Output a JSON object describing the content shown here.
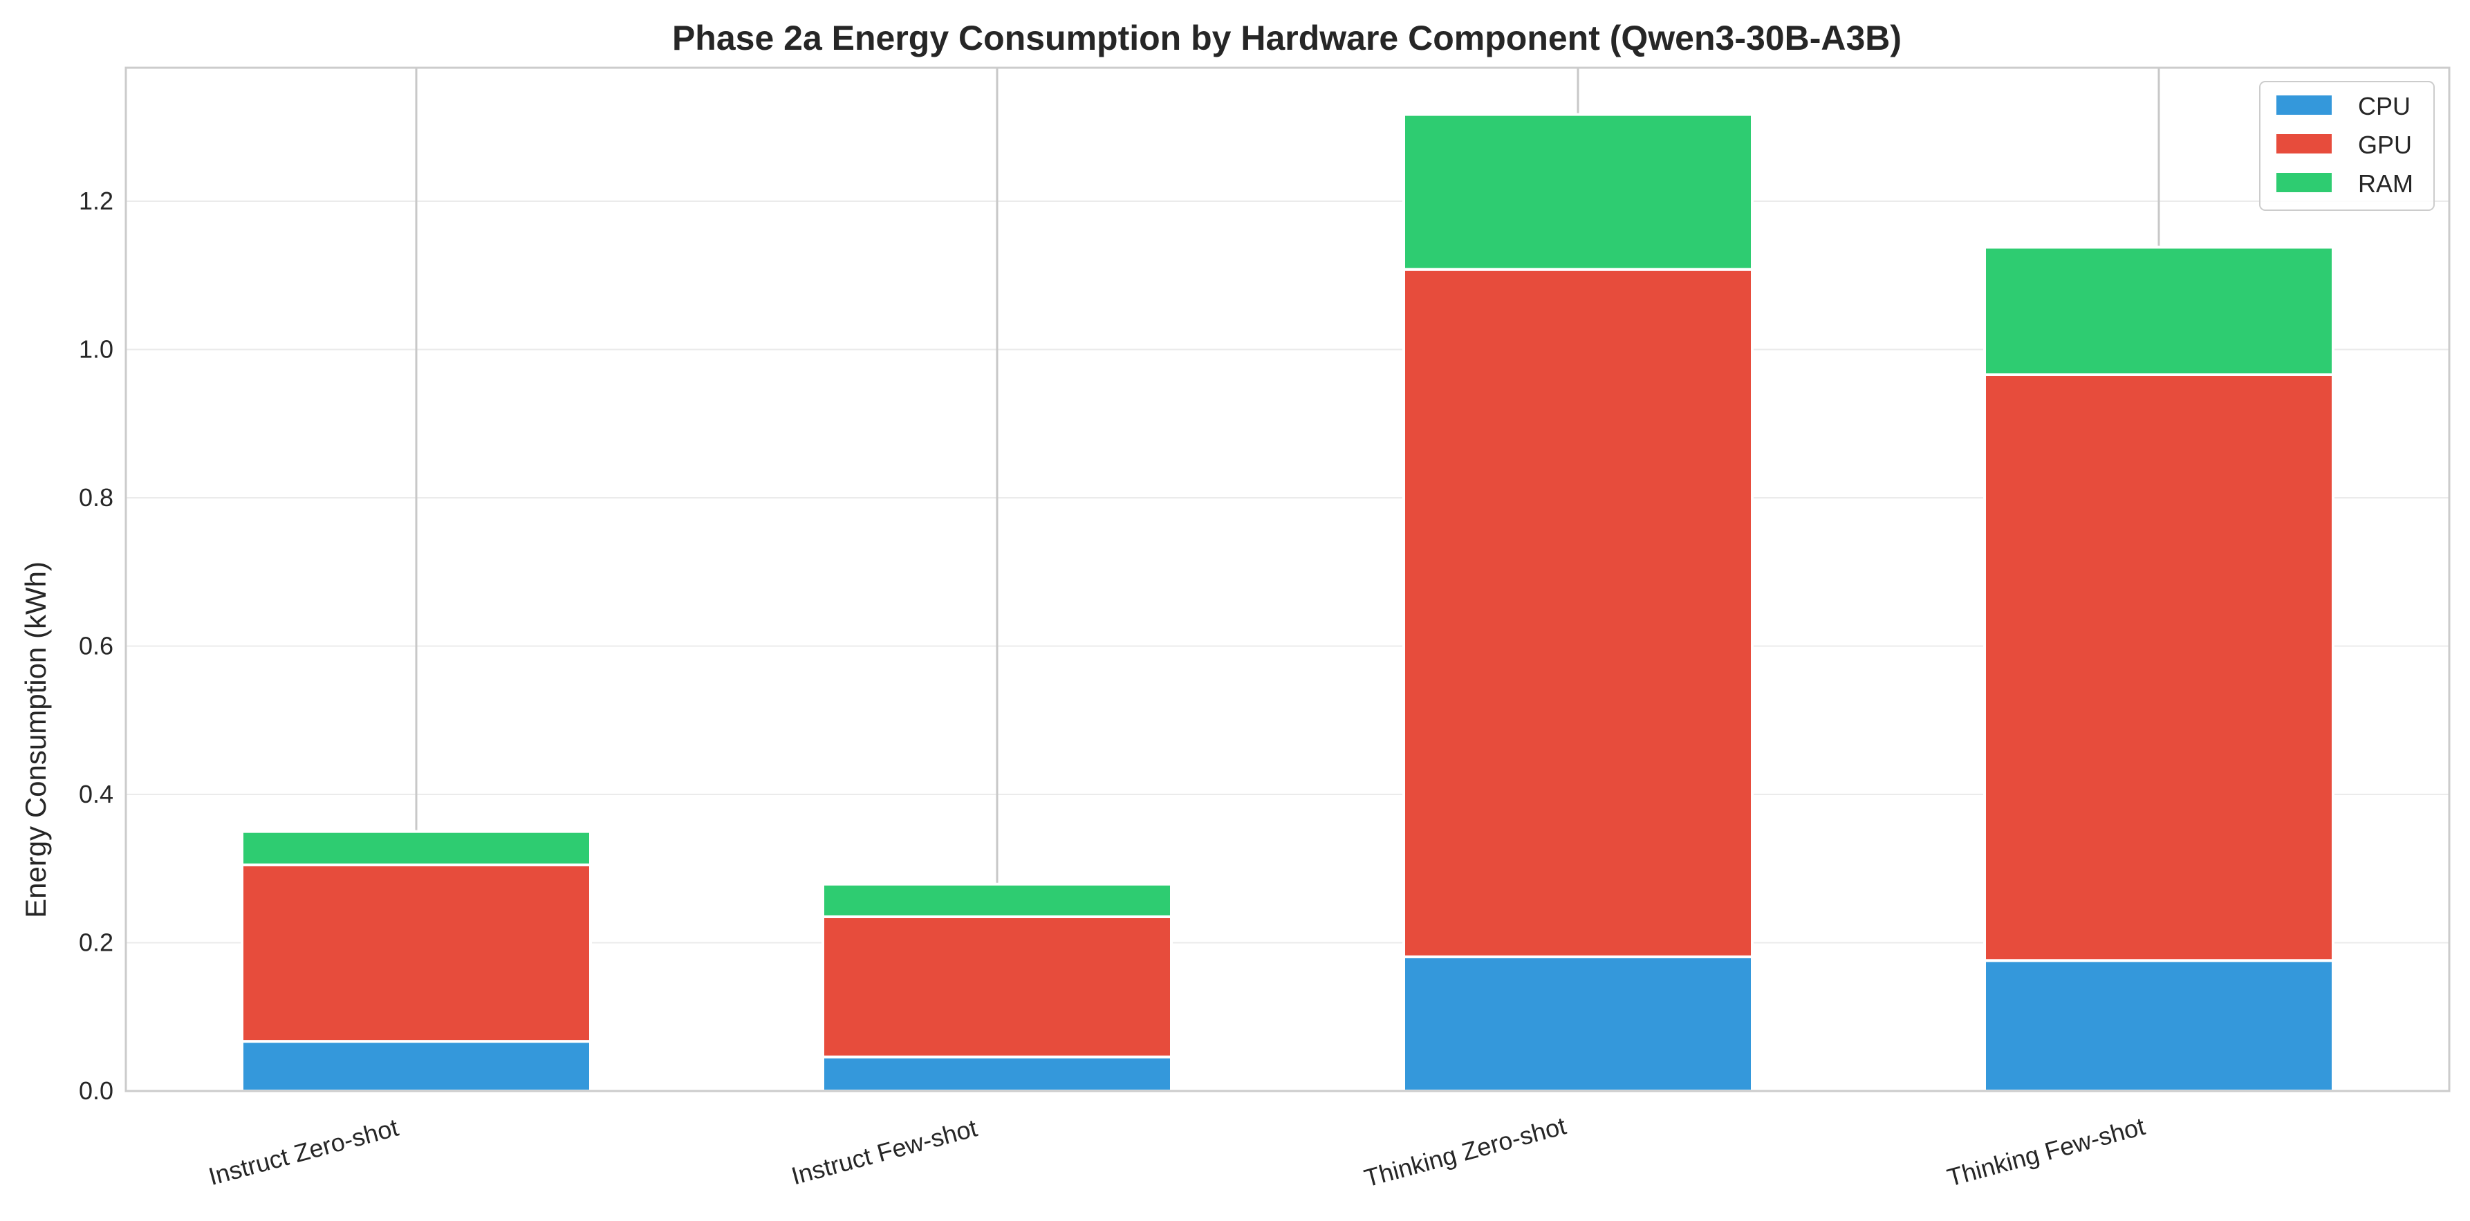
{
  "chart_data": {
    "type": "bar",
    "stacked": true,
    "title": "Phase 2a Energy Consumption by Hardware Component (Qwen3-30B-A3B)",
    "xlabel": "",
    "ylabel": "Energy Consumption (kWh)",
    "categories": [
      "Instruct Zero-shot",
      "Instruct Few-shot",
      "Thinking Zero-shot",
      "Thinking Few-shot"
    ],
    "series": [
      {
        "name": "CPU",
        "color": "#3498db",
        "values": [
          0.067,
          0.046,
          0.181,
          0.176
        ]
      },
      {
        "name": "GPU",
        "color": "#e74c3c",
        "values": [
          0.238,
          0.189,
          0.927,
          0.79
        ]
      },
      {
        "name": "RAM",
        "color": "#2ecc71",
        "values": [
          0.045,
          0.044,
          0.209,
          0.172
        ]
      }
    ],
    "error_bars_upper": [
      1.38,
      1.38,
      1.38,
      1.38
    ],
    "ylim": [
      0,
      1.38
    ],
    "yticks": [
      0.0,
      0.2,
      0.4,
      0.6,
      0.8,
      1.0,
      1.2
    ],
    "ytick_labels": [
      "0.0",
      "0.2",
      "0.4",
      "0.6",
      "0.8",
      "1.0",
      "1.2"
    ],
    "grid": true,
    "legend_position": "top-right"
  }
}
